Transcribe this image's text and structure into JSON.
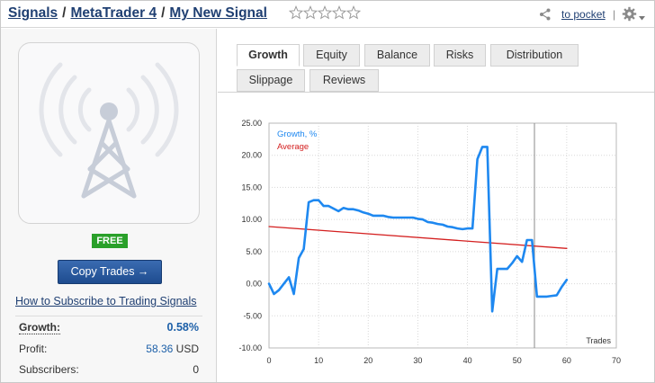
{
  "breadcrumb": {
    "items": [
      "Signals",
      "MetaTrader 4",
      "My New Signal"
    ],
    "separator": "/"
  },
  "rating": {
    "stars": 5,
    "filled": 0
  },
  "header": {
    "pocket_label": "to pocket",
    "share_icon": "share-icon",
    "settings_icon": "gear-icon"
  },
  "signal": {
    "price_badge": "FREE",
    "copy_button": "Copy Trades →",
    "howto_link": "How to Subscribe to Trading Signals",
    "stats": {
      "growth_label": "Growth:",
      "growth_value": "0.58%",
      "profit_label": "Profit:",
      "profit_value": "58.36",
      "profit_currency": "USD",
      "subscribers_label": "Subscribers:",
      "subscribers_value": "0"
    }
  },
  "tabs": [
    {
      "label": "Growth",
      "active": true
    },
    {
      "label": "Equity",
      "active": false
    },
    {
      "label": "Balance",
      "active": false
    },
    {
      "label": "Risks",
      "active": false
    },
    {
      "label": "Distribution",
      "active": false
    },
    {
      "label": "Slippage",
      "active": false
    },
    {
      "label": "Reviews",
      "active": false
    }
  ],
  "colors": {
    "growth_line": "#1e88f0",
    "average_line": "#d42020",
    "link": "#1f3f72",
    "badge": "#2aa02a"
  },
  "chart_data": {
    "type": "line",
    "xlabel": "Trades",
    "ylabel": "",
    "xlim": [
      0,
      70
    ],
    "ylim": [
      -10,
      25
    ],
    "x_ticks": [
      "0",
      "10",
      "20",
      "30",
      "40",
      "50",
      "60",
      "70"
    ],
    "y_ticks": [
      "-10.00",
      "-5.00",
      "0.00",
      "5.00",
      "10.00",
      "15.00",
      "20.00",
      "25.00"
    ],
    "grid": true,
    "legend": "top-left",
    "vertical_marker_x": 53.5,
    "series": [
      {
        "name": "Growth, %",
        "color": "#1e88f0",
        "x": [
          0,
          1,
          2,
          3,
          4,
          5,
          6,
          7,
          8,
          9,
          10,
          11,
          12,
          13,
          14,
          15,
          16,
          17,
          18,
          19,
          20,
          21,
          22,
          23,
          24,
          25,
          26,
          27,
          28,
          29,
          30,
          31,
          32,
          33,
          34,
          35,
          36,
          37,
          38,
          39,
          40,
          41,
          42,
          43,
          44,
          45,
          46,
          47,
          48,
          49,
          50,
          51,
          52,
          53,
          54,
          55,
          56,
          57,
          58,
          59,
          60
        ],
        "values": [
          0,
          -1.6,
          -1.0,
          0,
          1.0,
          -1.6,
          4.0,
          5.4,
          12.7,
          13.0,
          13.0,
          12.1,
          12.1,
          11.7,
          11.3,
          11.8,
          11.6,
          11.6,
          11.4,
          11.1,
          10.9,
          10.6,
          10.6,
          10.6,
          10.4,
          10.3,
          10.3,
          10.3,
          10.3,
          10.3,
          10.1,
          10.0,
          9.6,
          9.5,
          9.3,
          9.2,
          8.9,
          8.8,
          8.6,
          8.5,
          8.6,
          8.6,
          19.4,
          21.3,
          21.3,
          -4.3,
          2.3,
          2.3,
          2.3,
          3.2,
          4.3,
          3.4,
          6.8,
          6.8,
          -2.0,
          -2.0,
          -2.0,
          -1.9,
          -1.8,
          -0.5,
          0.6
        ]
      },
      {
        "name": "Average",
        "color": "#d42020",
        "x": [
          0,
          60
        ],
        "values": [
          8.9,
          5.5
        ]
      }
    ]
  }
}
